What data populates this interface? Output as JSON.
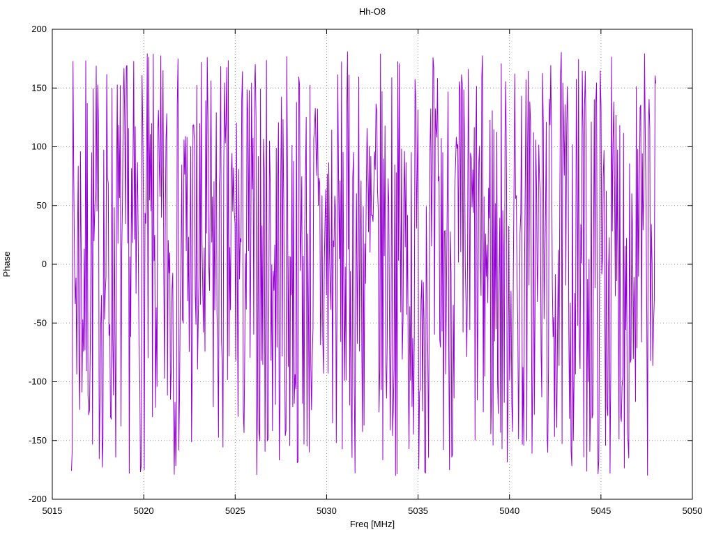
{
  "chart_data": {
    "type": "line",
    "title": "Hh-O8",
    "xlabel": "Freq [MHz]",
    "ylabel": "Phase",
    "xlim": [
      5015,
      5050
    ],
    "ylim": [
      -200,
      200
    ],
    "x_ticks": [
      "5015",
      "5020",
      "5025",
      "5030",
      "5035",
      "5040",
      "5045",
      "5050"
    ],
    "y_ticks": [
      "-200",
      "-150",
      "-100",
      "-50",
      "0",
      "50",
      "100",
      "150",
      "200"
    ],
    "x_tick_values": [
      5015,
      5020,
      5025,
      5030,
      5035,
      5040,
      5045,
      5050
    ],
    "y_tick_values": [
      -200,
      -150,
      -100,
      -50,
      0,
      50,
      100,
      150,
      200
    ],
    "grid": true,
    "grid_style": "dotted",
    "grid_color": "#999999",
    "border_color": "#000000",
    "legend": "none",
    "line_color": "#9400d3",
    "series": [
      {
        "name": "Hh-O8 phase",
        "description": "Dense wrapped fringe-phase noise: consecutive frequency-channel phases jump pseudo-randomly across nearly the full -180..180 degree range, drawn as a connected line",
        "x_start": 5016.05,
        "x_end": 5048.0,
        "n_points": 780,
        "y_min": -180,
        "y_max": 181,
        "distribution": "uniform",
        "seed": 7
      }
    ]
  }
}
